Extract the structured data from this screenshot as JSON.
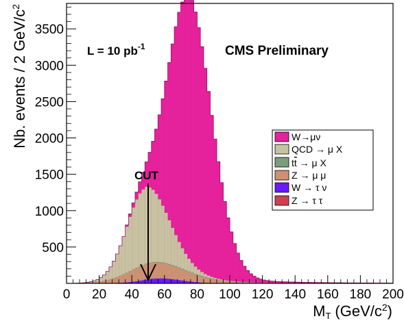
{
  "chart_data": {
    "type": "stacked-histogram",
    "xlabel": "M",
    "xlabel_sub": "T",
    "xlabel_unit": "(GeV/c",
    "xlabel_unit_sup": "2",
    "xlabel_unit_close": ")",
    "ylabel": "Nb. events / 2 GeV/c",
    "ylabel_sup": "2",
    "xlim": [
      0,
      200
    ],
    "ylim": [
      0,
      3850
    ],
    "bin_width": 2,
    "x_ticks": [
      0,
      20,
      40,
      60,
      80,
      100,
      120,
      140,
      160,
      180,
      200
    ],
    "y_ticks": [
      500,
      1000,
      1500,
      2000,
      2500,
      3000,
      3500
    ],
    "annotations": {
      "luminosity": "L = 10 pb",
      "luminosity_sup": "-1",
      "experiment": "CMS Preliminary",
      "cut_label": "CUT",
      "cut_x": 50
    },
    "legend_position": "right",
    "series": [
      {
        "name": "W→μν",
        "color": "#e5219b",
        "peak_x": 75,
        "peak_y": 3580,
        "sigma_left": 12,
        "sigma_right": 14,
        "min_x": 36
      },
      {
        "name": "QCD → μ X",
        "color": "#c7c2a1",
        "peak_x": 48,
        "peak_y": 1040,
        "sigma_left": 11,
        "sigma_right": 14,
        "min_x": 4
      },
      {
        "name": "t",
        "name_bar": "t",
        "name_rest": " → μ X",
        "color": "#7b9d7d",
        "peak_x": 65,
        "peak_y": 12,
        "sigma_left": 20,
        "sigma_right": 30,
        "min_x": 10
      },
      {
        "name": "Z → μ μ",
        "color": "#cd9172",
        "peak_x": 52,
        "peak_y": 215,
        "sigma_left": 15,
        "sigma_right": 22,
        "min_x": 6
      },
      {
        "name": "W → τ ν",
        "color": "#6b19ff",
        "peak_x": 57,
        "peak_y": 65,
        "sigma_left": 10,
        "sigma_right": 13,
        "min_x": 20
      },
      {
        "name": "Z → τ τ",
        "color": "#d0404f",
        "peak_x": 40,
        "peak_y": 5,
        "sigma_left": 12,
        "sigma_right": 18,
        "min_x": 10
      }
    ]
  }
}
